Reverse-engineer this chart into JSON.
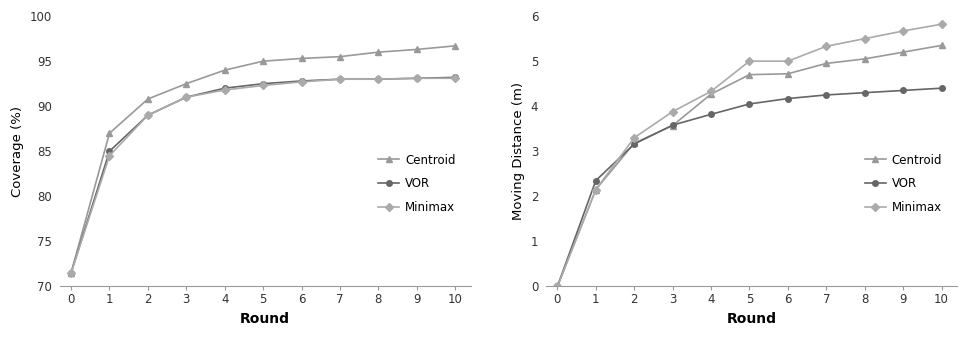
{
  "rounds": [
    0,
    1,
    2,
    3,
    4,
    5,
    6,
    7,
    8,
    9,
    10
  ],
  "coverage": {
    "Centroid": [
      71.5,
      87.0,
      90.8,
      92.5,
      94.0,
      95.0,
      95.3,
      95.5,
      96.0,
      96.3,
      96.7
    ],
    "VOR": [
      71.5,
      85.0,
      89.0,
      91.0,
      92.0,
      92.5,
      92.8,
      93.0,
      93.0,
      93.1,
      93.2
    ],
    "Minimax": [
      71.5,
      84.5,
      89.0,
      91.0,
      91.8,
      92.3,
      92.7,
      93.0,
      93.0,
      93.1,
      93.1
    ]
  },
  "distance": {
    "Centroid": [
      0.0,
      2.15,
      3.18,
      3.57,
      4.27,
      4.7,
      4.72,
      4.95,
      5.05,
      5.2,
      5.35
    ],
    "VOR": [
      0.0,
      2.35,
      3.16,
      3.58,
      3.82,
      4.05,
      4.17,
      4.25,
      4.3,
      4.35,
      4.4
    ],
    "Minimax": [
      0.0,
      2.15,
      3.3,
      3.88,
      4.33,
      5.0,
      5.0,
      5.33,
      5.5,
      5.67,
      5.82
    ]
  },
  "coverage_ylim": [
    70,
    100
  ],
  "coverage_yticks": [
    70,
    75,
    80,
    85,
    90,
    95,
    100
  ],
  "distance_ylim": [
    0,
    6
  ],
  "distance_yticks": [
    0,
    1,
    2,
    3,
    4,
    5,
    6
  ],
  "xlabel": "Round",
  "coverage_ylabel": "Coverage (%)",
  "distance_ylabel": "Moving Distance (m)",
  "color_centroid": "#999999",
  "color_vor": "#666666",
  "color_minimax": "#aaaaaa",
  "marker_centroid": "^",
  "marker_vor": "o",
  "marker_minimax": "D",
  "markersize": 4,
  "linewidth": 1.2,
  "background_color": "#ffffff",
  "fig_background": "#f0f0f0"
}
